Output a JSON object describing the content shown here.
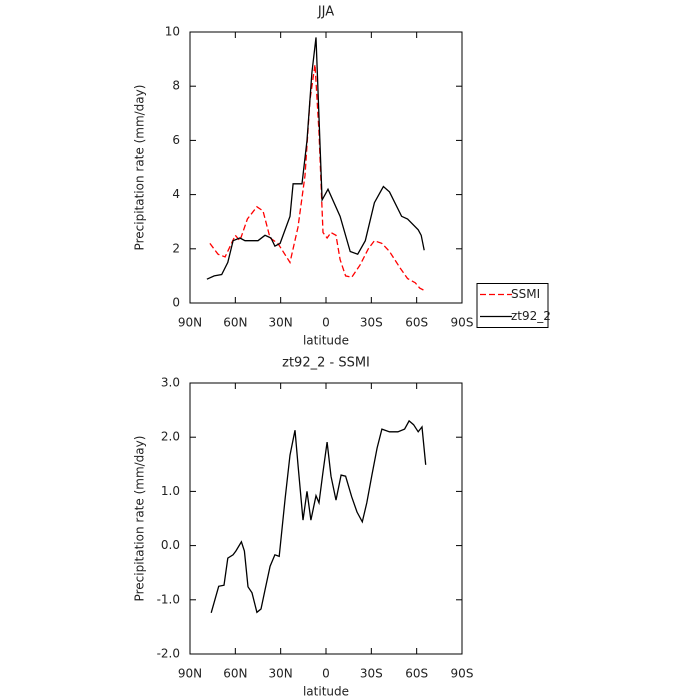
{
  "chart_data": [
    {
      "type": "line",
      "title": "JJA",
      "xlabel": "latitude",
      "ylabel": "Precipitation rate (mm/day)",
      "xlim": [
        90,
        -90
      ],
      "xticks": [
        {
          "value": 90,
          "label": "90N"
        },
        {
          "value": 60,
          "label": "60N"
        },
        {
          "value": 30,
          "label": "30N"
        },
        0,
        {
          "value": -30,
          "label": "30S"
        },
        {
          "value": -60,
          "label": "60S"
        },
        {
          "value": -90,
          "label": "90S"
        }
      ],
      "ylim": [
        0,
        10
      ],
      "yticks": [
        0,
        2,
        4,
        6,
        8,
        10
      ],
      "legend": "right",
      "series": [
        {
          "name": "SSMI",
          "color": "#ff0000",
          "line_style": "dashed",
          "x": [
            76.8,
            71.5,
            66.8,
            60,
            57,
            52,
            45.7,
            41.7,
            37,
            31.8,
            23.8,
            18.5,
            13.9,
            10.6,
            7.3,
            4.6,
            2,
            -0.7,
            -3.3,
            -6.6,
            -9.3,
            -13,
            -17,
            -22.5,
            -28,
            -32,
            -37,
            -42,
            -49,
            -54,
            -59,
            -62,
            -65.5
          ],
          "values": [
            2.2,
            1.8,
            1.7,
            2.5,
            2.3,
            3.1,
            3.55,
            3.4,
            2.4,
            2.2,
            1.5,
            2.8,
            4.7,
            7.5,
            8.8,
            6.3,
            2.6,
            2.4,
            2.6,
            2.5,
            1.6,
            1.0,
            0.95,
            1.4,
            2.0,
            2.3,
            2.2,
            1.9,
            1.3,
            0.9,
            0.75,
            0.55,
            0.45
          ]
        },
        {
          "name": "zt92_2",
          "color": "#000000",
          "line_style": "solid",
          "x": [
            78.8,
            74,
            69,
            65,
            61.5,
            57,
            53.6,
            45,
            40.4,
            36.4,
            33.8,
            30.4,
            23.8,
            21.8,
            15.9,
            12.6,
            9.3,
            6.6,
            2.6,
            -1.3,
            -9.3,
            -16,
            -21,
            -26,
            -32,
            -38,
            -42,
            -50,
            -54,
            -61,
            -63,
            -65
          ],
          "values": [
            0.88,
            1.0,
            1.05,
            1.5,
            2.3,
            2.4,
            2.3,
            2.3,
            2.5,
            2.4,
            2.1,
            2.2,
            3.2,
            4.4,
            4.4,
            6.0,
            8.5,
            9.8,
            3.8,
            4.2,
            3.2,
            1.9,
            1.8,
            2.3,
            3.7,
            4.3,
            4.1,
            3.2,
            3.1,
            2.7,
            2.5,
            1.95
          ]
        }
      ]
    },
    {
      "type": "line",
      "title": "zt92_2 - SSMI",
      "xlabel": "latitude",
      "ylabel": "Precipitation rate (mm/day)",
      "xlim": [
        90,
        -90
      ],
      "xticks": [
        {
          "value": 90,
          "label": "90N"
        },
        {
          "value": 60,
          "label": "60N"
        },
        {
          "value": 30,
          "label": "30N"
        },
        0,
        {
          "value": -30,
          "label": "30S"
        },
        {
          "value": -60,
          "label": "60S"
        },
        {
          "value": -90,
          "label": "90S"
        }
      ],
      "ylim": [
        -2,
        3
      ],
      "yticks": [
        {
          "value": -2,
          "label": "-2.0"
        },
        {
          "value": -1,
          "label": "-1.0"
        },
        {
          "value": 0,
          "label": "0.0"
        },
        {
          "value": 1,
          "label": "1.0"
        },
        {
          "value": 2,
          "label": "2.0"
        },
        {
          "value": 3,
          "label": "3.0"
        }
      ],
      "series": [
        {
          "color": "#000000",
          "line_style": "solid",
          "x": [
            76,
            71,
            67.5,
            65,
            61.5,
            59.6,
            56,
            54,
            51.6,
            49,
            45.7,
            43,
            40.4,
            37,
            33.8,
            31,
            27,
            23.8,
            20.5,
            18.5,
            15.2,
            12.6,
            10,
            6.6,
            4.6,
            2,
            -0.7,
            -3.3,
            -6.6,
            -10,
            -13,
            -17,
            -20.5,
            -24,
            -27,
            -30.4,
            -33.8,
            -37,
            -42,
            -47.6,
            -52,
            -55,
            -58,
            -61,
            -63.5,
            -66
          ],
          "values": [
            -1.24,
            -0.75,
            -0.73,
            -0.23,
            -0.17,
            -0.1,
            0.07,
            -0.1,
            -0.76,
            -0.87,
            -1.23,
            -1.17,
            -0.82,
            -0.38,
            -0.17,
            -0.2,
            0.88,
            1.67,
            2.13,
            1.49,
            0.47,
            1.0,
            0.47,
            0.92,
            0.79,
            1.36,
            1.91,
            1.28,
            0.84,
            1.3,
            1.28,
            0.9,
            0.62,
            0.44,
            0.79,
            1.3,
            1.8,
            2.15,
            2.1,
            2.1,
            2.15,
            2.3,
            2.23,
            2.1,
            2.19,
            1.49
          ]
        }
      ]
    }
  ]
}
